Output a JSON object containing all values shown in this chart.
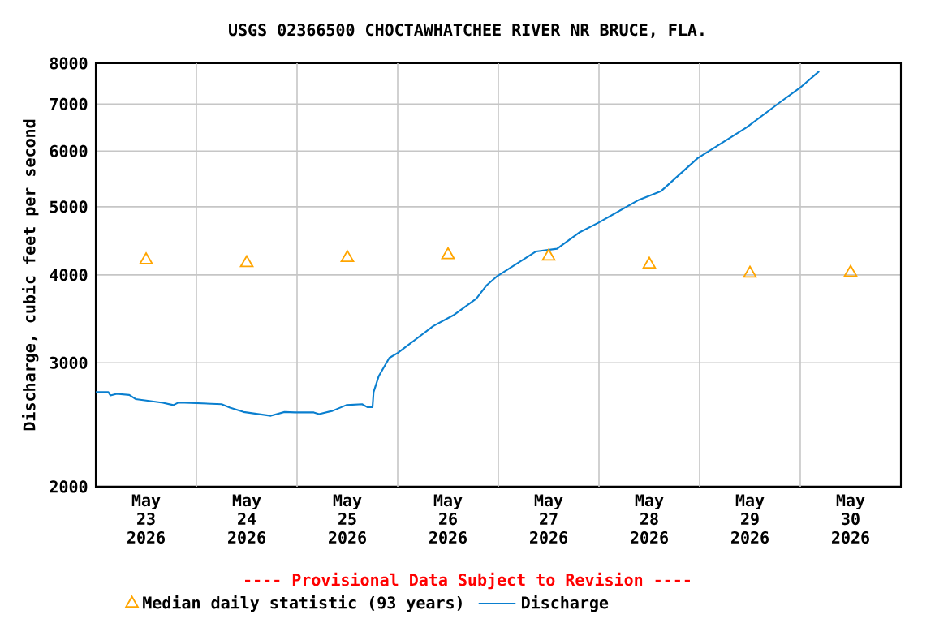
{
  "chart_data": {
    "type": "line",
    "title": "USGS 02366500 CHOCTAWHATCHEE RIVER NR BRUCE, FLA.",
    "ylabel": "Discharge, cubic feet per second",
    "annotations": [
      "---- Provisional Data Subject to Revision ----"
    ],
    "log": "y",
    "grid": true,
    "legend": "bottom",
    "xlim": [
      "2026-05-23T00:00",
      "2026-05-31T00:00"
    ],
    "xticks": [
      {
        "value": "2026-05-23T12:00",
        "label": "May 23 2026"
      },
      {
        "value": "2026-05-24T00:00",
        "label": null
      },
      {
        "value": "2026-05-24T12:00",
        "label": "May 24 2026"
      },
      {
        "value": "2026-05-25T00:00",
        "label": null
      },
      {
        "value": "2026-05-25T12:00",
        "label": "May 25 2026"
      },
      {
        "value": "2026-05-26T00:00",
        "label": null
      },
      {
        "value": "2026-05-26T12:00",
        "label": "May 26 2026"
      },
      {
        "value": "2026-05-27T00:00",
        "label": null
      },
      {
        "value": "2026-05-27T12:00",
        "label": "May 27 2026"
      },
      {
        "value": "2026-05-28T00:00",
        "label": null
      },
      {
        "value": "2026-05-28T12:00",
        "label": "May 28 2026"
      },
      {
        "value": "2026-05-29T00:00",
        "label": null
      },
      {
        "value": "2026-05-29T12:00",
        "label": "May 29 2026"
      },
      {
        "value": "2026-05-30T00:00",
        "label": null
      },
      {
        "value": "2026-05-30T12:00",
        "label": "May 30 2026"
      }
    ],
    "ylim": [
      2000,
      8000
    ],
    "yticks": [
      2000,
      3000,
      4000,
      5000,
      6000,
      7000,
      8000
    ],
    "series": [
      {
        "name": "Median daily statistic (93 years)",
        "type": "scatter",
        "marker": "triangle",
        "color": "#ffa500",
        "x": [
          "2026-05-23T12:00",
          "2026-05-24T12:00",
          "2026-05-25T12:00",
          "2026-05-26T12:00",
          "2026-05-27T12:00",
          "2026-05-28T12:00",
          "2026-05-29T12:00",
          "2026-05-30T12:00"
        ],
        "values": [
          4200,
          4160,
          4230,
          4270,
          4250,
          4140,
          4020,
          4030
        ]
      },
      {
        "name": "Discharge",
        "color": "#0a7fcf",
        "x": [
          "2026-05-23T00:00",
          "2026-05-23T03:00",
          "2026-05-23T03:30",
          "2026-05-23T05:00",
          "2026-05-23T08:00",
          "2026-05-23T09:30",
          "2026-05-23T16:00",
          "2026-05-23T18:30",
          "2026-05-23T19:45",
          "2026-05-24T06:00",
          "2026-05-24T08:00",
          "2026-05-24T11:15",
          "2026-05-24T17:45",
          "2026-05-24T21:00",
          "2026-05-24T23:30",
          "2026-05-25T04:00",
          "2026-05-25T05:15",
          "2026-05-25T08:30",
          "2026-05-25T11:45",
          "2026-05-25T15:30",
          "2026-05-25T16:45",
          "2026-05-25T18:00",
          "2026-05-25T18:15",
          "2026-05-25T19:30",
          "2026-05-25T22:00",
          "2026-05-26T00:00",
          "2026-05-26T03:00",
          "2026-05-26T08:30",
          "2026-05-26T13:30",
          "2026-05-26T18:45",
          "2026-05-26T21:15",
          "2026-05-26T23:45",
          "2026-05-27T09:00",
          "2026-05-27T14:00",
          "2026-05-27T19:15",
          "2026-05-27T23:45",
          "2026-05-28T09:30",
          "2026-05-28T14:45",
          "2026-05-28T23:30",
          "2026-05-29T11:15",
          "2026-05-29T19:00",
          "2026-05-30T00:00",
          "2026-05-30T04:30"
        ],
        "values": [
          2726,
          2726,
          2696,
          2710,
          2700,
          2664,
          2632,
          2612,
          2635,
          2620,
          2590,
          2554,
          2522,
          2554,
          2550,
          2550,
          2536,
          2564,
          2612,
          2620,
          2595,
          2595,
          2726,
          2874,
          3048,
          3098,
          3196,
          3384,
          3512,
          3702,
          3870,
          3986,
          4320,
          4358,
          4594,
          4742,
          5114,
          5260,
          5860,
          6488,
          7028,
          7388,
          7792
        ]
      }
    ]
  }
}
